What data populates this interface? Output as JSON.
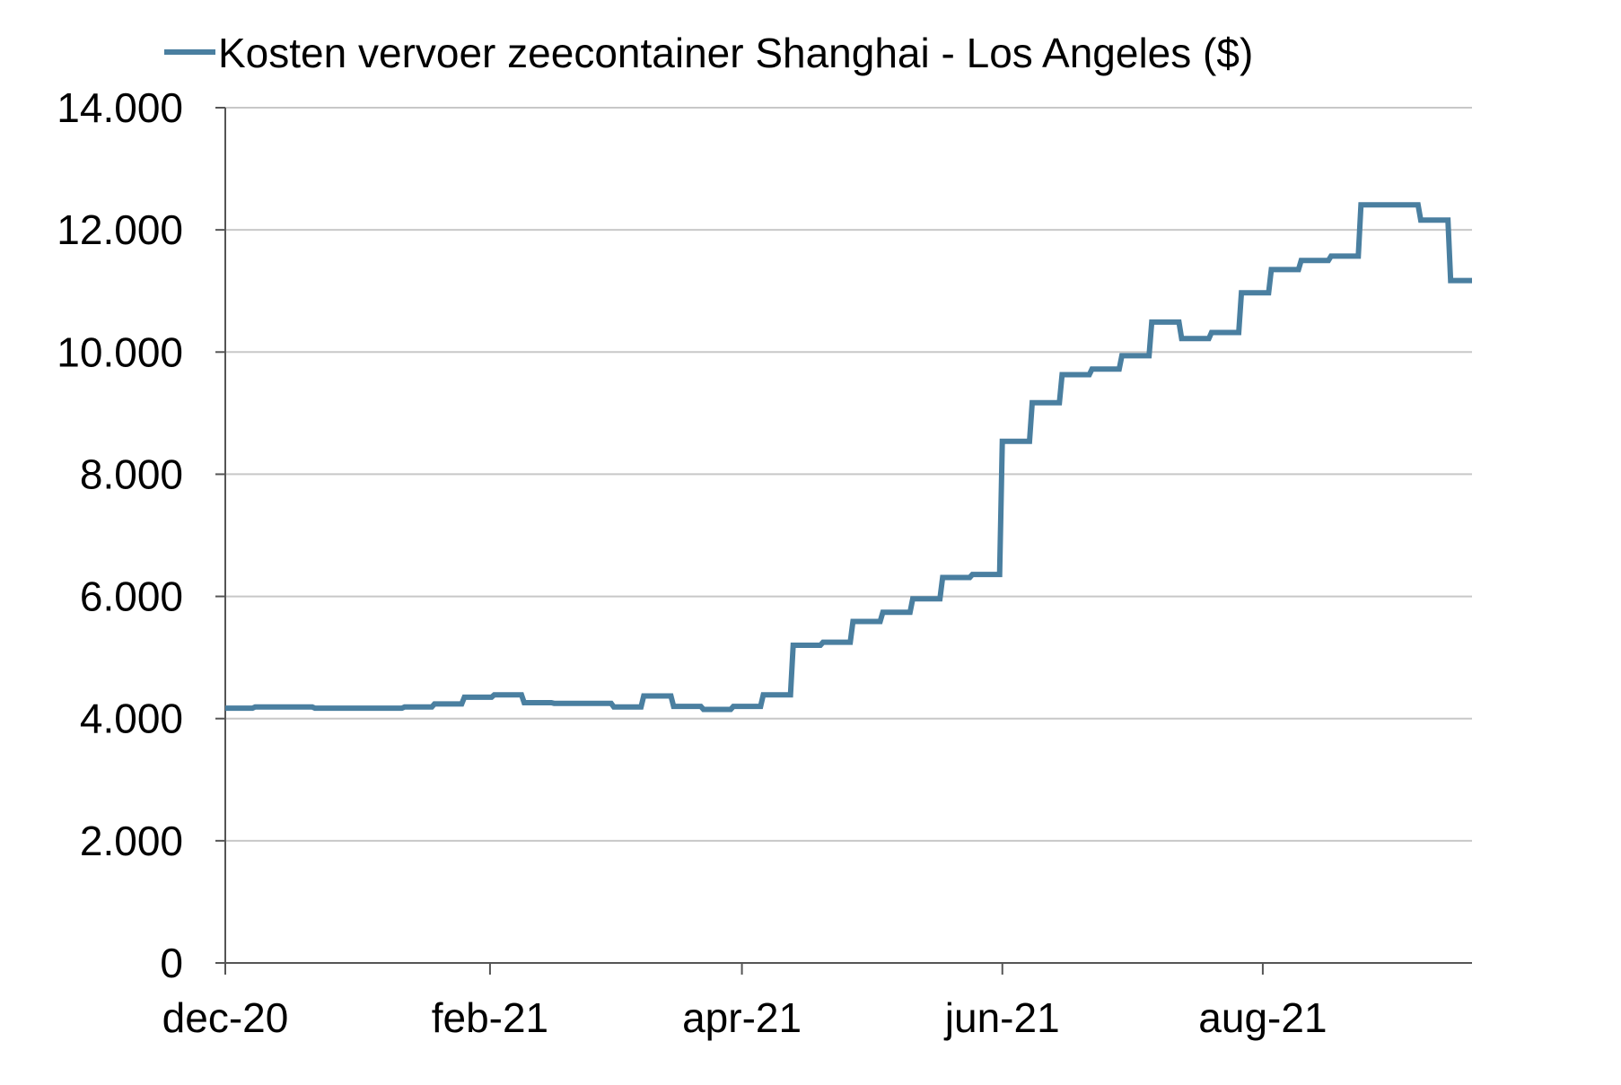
{
  "chart_data": {
    "type": "line",
    "title": "",
    "xlabel": "",
    "ylabel": "",
    "legend_position": "top",
    "grid": true,
    "ylim": [
      0,
      14000
    ],
    "xlim": [
      "2020-12-01",
      "2021-09-19"
    ],
    "yticks": [
      {
        "value": 0,
        "label": "0"
      },
      {
        "value": 2000,
        "label": "2.000"
      },
      {
        "value": 4000,
        "label": "4.000"
      },
      {
        "value": 6000,
        "label": "6.000"
      },
      {
        "value": 8000,
        "label": "8.000"
      },
      {
        "value": 10000,
        "label": "10.000"
      },
      {
        "value": 12000,
        "label": "12.000"
      },
      {
        "value": 14000,
        "label": "14.000"
      }
    ],
    "xticks": [
      {
        "date": "2020-12-01",
        "label": "dec-20"
      },
      {
        "date": "2021-02-01",
        "label": "feb-21"
      },
      {
        "date": "2021-04-01",
        "label": "apr-21"
      },
      {
        "date": "2021-06-01",
        "label": "jun-21"
      },
      {
        "date": "2021-08-01",
        "label": "aug-21"
      }
    ],
    "colors": {
      "series": "#4a7fa0",
      "grid": "#c8c8c8",
      "axis": "#555555"
    },
    "series": [
      {
        "name": "Kosten vervoer zeecontainer Shanghai - Los Angeles ($)",
        "step": true,
        "points": [
          [
            "2020-12-01",
            4170
          ],
          [
            "2020-12-08",
            4190
          ],
          [
            "2020-12-22",
            4170
          ],
          [
            "2021-01-12",
            4190
          ],
          [
            "2021-01-19",
            4240
          ],
          [
            "2021-01-26",
            4350
          ],
          [
            "2021-02-02",
            4390
          ],
          [
            "2021-02-09",
            4260
          ],
          [
            "2021-02-16",
            4250
          ],
          [
            "2021-03-02",
            4190
          ],
          [
            "2021-03-09",
            4370
          ],
          [
            "2021-03-16",
            4200
          ],
          [
            "2021-03-23",
            4150
          ],
          [
            "2021-03-30",
            4200
          ],
          [
            "2021-04-06",
            4390
          ],
          [
            "2021-04-13",
            5200
          ],
          [
            "2021-04-20",
            5250
          ],
          [
            "2021-04-27",
            5590
          ],
          [
            "2021-05-04",
            5740
          ],
          [
            "2021-05-11",
            5960
          ],
          [
            "2021-05-18",
            6310
          ],
          [
            "2021-05-25",
            6360
          ],
          [
            "2021-06-01",
            8540
          ],
          [
            "2021-06-08",
            9170
          ],
          [
            "2021-06-15",
            9630
          ],
          [
            "2021-06-22",
            9720
          ],
          [
            "2021-06-29",
            9940
          ],
          [
            "2021-07-06",
            10490
          ],
          [
            "2021-07-13",
            10220
          ],
          [
            "2021-07-20",
            10320
          ],
          [
            "2021-07-27",
            10970
          ],
          [
            "2021-08-03",
            11350
          ],
          [
            "2021-08-10",
            11500
          ],
          [
            "2021-08-17",
            11570
          ],
          [
            "2021-08-24",
            12410
          ],
          [
            "2021-09-07",
            12160
          ],
          [
            "2021-09-14",
            11170
          ],
          [
            "2021-09-19",
            11170
          ]
        ]
      }
    ]
  }
}
